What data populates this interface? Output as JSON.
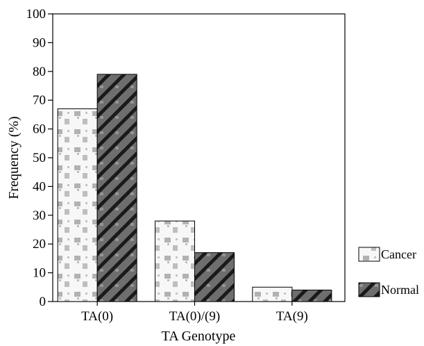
{
  "chart_data": {
    "type": "bar",
    "title": "",
    "xlabel": "TA Genotype",
    "ylabel": "Frequency (%)",
    "ylim": [
      0,
      100
    ],
    "yticks": [
      0,
      10,
      20,
      30,
      40,
      50,
      60,
      70,
      80,
      90,
      100
    ],
    "categories": [
      "TA(0)",
      "TA(0)/(9)",
      "TA(9)"
    ],
    "series": [
      {
        "name": "Cancer",
        "values": [
          67,
          28,
          5
        ],
        "color": "#f2f2f2",
        "pattern": "light-speckle"
      },
      {
        "name": "Normal",
        "values": [
          79,
          17,
          4
        ],
        "color": "#555555",
        "pattern": "dark-diagonal"
      }
    ],
    "legend_position": "right",
    "grid": false
  }
}
